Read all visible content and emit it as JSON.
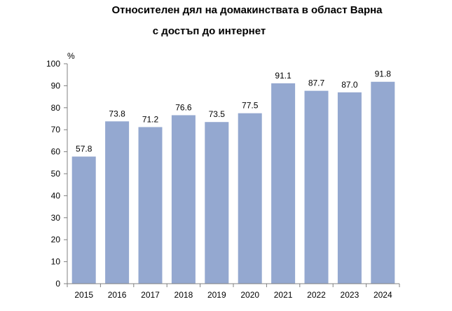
{
  "chart_data": {
    "type": "bar",
    "title_line1": "Относителен дял на домакинствата в област Варна",
    "title_line2": "с достъп до интернет",
    "ylabel": "%",
    "ylim": [
      0,
      100
    ],
    "yticks": [
      0,
      10,
      20,
      30,
      40,
      50,
      60,
      70,
      80,
      90,
      100
    ],
    "categories": [
      "2015",
      "2016",
      "2017",
      "2018",
      "2019",
      "2020",
      "2021",
      "2022",
      "2023",
      "2024"
    ],
    "values": [
      57.8,
      73.8,
      71.2,
      76.6,
      73.5,
      77.5,
      91.1,
      87.7,
      87.0,
      91.8
    ],
    "value_labels": [
      "57.8",
      "73.8",
      "71.2",
      "76.6",
      "73.5",
      "77.5",
      "91.1",
      "87.7",
      "87.0",
      "91.8"
    ],
    "bar_color": "#94a8d0",
    "grid": false,
    "legend": "none"
  }
}
